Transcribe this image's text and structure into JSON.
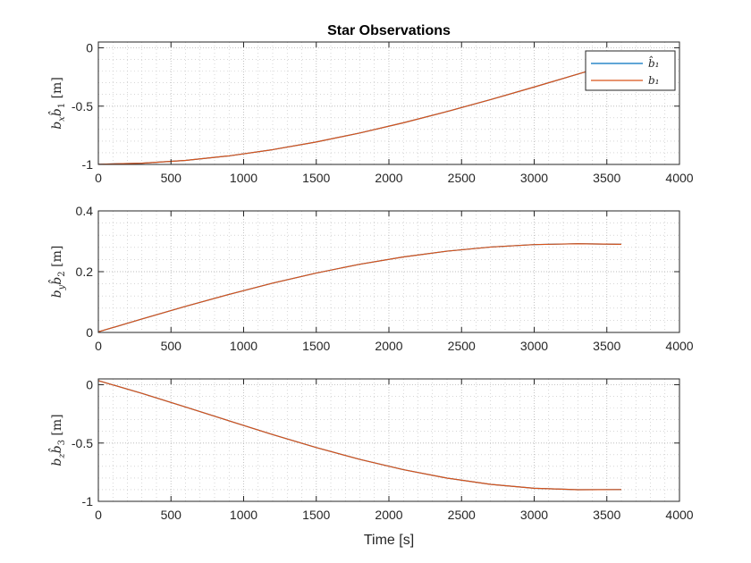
{
  "chart_data": {
    "type": "line",
    "title": "Star Observations",
    "xlabel": "Time [s]",
    "colors": {
      "b_hat": "#0072BD",
      "b": "#D95319",
      "axes": "#262626",
      "grid": "#bdbdbd"
    },
    "legend": {
      "placement": "top-right",
      "entries": [
        "b̂₁",
        "b₁"
      ]
    },
    "grid": "on (major and minor, dotted)",
    "subplots": [
      {
        "ylabel": "b_x b̂₁ [m]",
        "ylabel_parts": {
          "b": "b",
          "sub1": "x",
          "hat": "b̂",
          "sub2": "1",
          "unit": " [m]"
        },
        "xlim": [
          0,
          4000
        ],
        "ylim": [
          -1,
          0.05
        ],
        "xticks": [
          "0",
          "500",
          "1000",
          "1500",
          "2000",
          "2500",
          "3000",
          "3500",
          "4000"
        ],
        "yticks": [
          "0",
          "-0.5",
          "-1"
        ],
        "series": [
          {
            "name": "b̂₁",
            "x": [
              0,
              300,
              600,
              900,
              1200,
              1500,
              1800,
              2100,
              2400,
              2700,
              3000,
              3300,
              3600
            ],
            "y": [
              -0.9986,
              -0.9895,
              -0.9653,
              -0.9265,
              -0.8733,
              -0.8076,
              -0.7302,
              -0.6427,
              -0.5466,
              -0.4438,
              -0.3361,
              -0.2256,
              -0.1142
            ]
          },
          {
            "name": "b₁",
            "x": [
              0,
              300,
              600,
              900,
              1200,
              1500,
              1800,
              2100,
              2400,
              2700,
              3000,
              3300,
              3600
            ],
            "y": [
              -0.9986,
              -0.9895,
              -0.9653,
              -0.9265,
              -0.8733,
              -0.8076,
              -0.7302,
              -0.6427,
              -0.5466,
              -0.4438,
              -0.3361,
              -0.2256,
              -0.1142
            ]
          }
        ]
      },
      {
        "ylabel": "b_y b̂₂ [m]",
        "ylabel_parts": {
          "b": "b",
          "sub1": "y",
          "hat": "b̂",
          "sub2": "2",
          "unit": " [m]"
        },
        "xlim": [
          0,
          4000
        ],
        "ylim": [
          0,
          0.4
        ],
        "xticks": [
          "0",
          "500",
          "1000",
          "1500",
          "2000",
          "2500",
          "3000",
          "3500",
          "4000"
        ],
        "yticks": [
          "0.4",
          "0.2",
          "0"
        ],
        "series": [
          {
            "name": "b̂₁",
            "x": [
              0,
              300,
              600,
              900,
              1200,
              1500,
              1800,
              2100,
              2400,
              2700,
              3000,
              3300,
              3600
            ],
            "y": [
              0.002,
              0.0442,
              0.0857,
              0.1253,
              0.1622,
              0.1955,
              0.2245,
              0.2486,
              0.2675,
              0.281,
              0.2891,
              0.292,
              0.29
            ]
          },
          {
            "name": "b₁",
            "x": [
              0,
              300,
              600,
              900,
              1200,
              1500,
              1800,
              2100,
              2400,
              2700,
              3000,
              3300,
              3600
            ],
            "y": [
              0.002,
              0.0442,
              0.0857,
              0.1253,
              0.1622,
              0.1955,
              0.2245,
              0.2486,
              0.2675,
              0.281,
              0.2891,
              0.292,
              0.29
            ]
          }
        ]
      },
      {
        "ylabel": "b_z b̂₃ [m]",
        "ylabel_parts": {
          "b": "b",
          "sub1": "z",
          "hat": "b̂",
          "sub2": "3",
          "unit": " [m]"
        },
        "xlim": [
          0,
          4000
        ],
        "ylim": [
          -1,
          0.05
        ],
        "xticks": [
          "0",
          "500",
          "1000",
          "1500",
          "2000",
          "2500",
          "3000",
          "3500",
          "4000"
        ],
        "yticks": [
          "0",
          "-0.5",
          "-1"
        ],
        "series": [
          {
            "name": "b̂₁",
            "x": [
              0,
              300,
              600,
              900,
              1200,
              1500,
              1800,
              2100,
              2400,
              2700,
              3000,
              3300,
              3600
            ],
            "y": [
              0.035,
              -0.0742,
              -0.1907,
              -0.3098,
              -0.4273,
              -0.5388,
              -0.6403,
              -0.7285,
              -0.8006,
              -0.8543,
              -0.888,
              -0.9001,
              -0.899
            ]
          },
          {
            "name": "b₁",
            "x": [
              0,
              300,
              600,
              900,
              1200,
              1500,
              1800,
              2100,
              2400,
              2700,
              3000,
              3300,
              3600
            ],
            "y": [
              0.035,
              -0.0742,
              -0.1907,
              -0.3098,
              -0.4273,
              -0.5388,
              -0.6403,
              -0.7285,
              -0.8006,
              -0.8543,
              -0.888,
              -0.9001,
              -0.899
            ]
          }
        ]
      }
    ]
  }
}
